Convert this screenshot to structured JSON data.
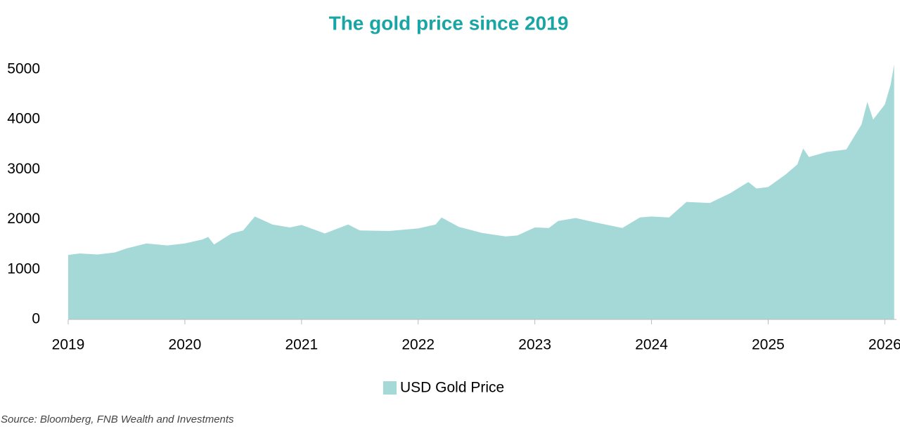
{
  "chart_data": {
    "type": "area",
    "title": "The gold price since 2019",
    "source": "Source: Bloomberg, FNB Wealth and Investments",
    "x": [
      2019.0,
      2019.1,
      2019.25,
      2019.4,
      2019.5,
      2019.67,
      2019.85,
      2020.0,
      2020.15,
      2020.2,
      2020.25,
      2020.4,
      2020.5,
      2020.6,
      2020.75,
      2020.9,
      2021.0,
      2021.2,
      2021.4,
      2021.5,
      2021.75,
      2022.0,
      2022.15,
      2022.2,
      2022.35,
      2022.55,
      2022.75,
      2022.85,
      2023.0,
      2023.12,
      2023.2,
      2023.35,
      2023.5,
      2023.75,
      2023.9,
      2024.0,
      2024.15,
      2024.3,
      2024.5,
      2024.67,
      2024.83,
      2024.9,
      2025.0,
      2025.15,
      2025.25,
      2025.3,
      2025.35,
      2025.5,
      2025.67,
      2025.8,
      2025.85,
      2025.9,
      2026.0,
      2026.05,
      2026.08
    ],
    "series": [
      {
        "name": "USD Gold Price",
        "color": "#a5d9d8",
        "values": [
          1290,
          1320,
          1300,
          1340,
          1420,
          1520,
          1480,
          1520,
          1600,
          1650,
          1500,
          1720,
          1780,
          2060,
          1900,
          1840,
          1890,
          1720,
          1900,
          1780,
          1770,
          1820,
          1900,
          2040,
          1850,
          1730,
          1660,
          1680,
          1840,
          1830,
          1970,
          2030,
          1950,
          1830,
          2040,
          2060,
          2040,
          2350,
          2330,
          2520,
          2750,
          2620,
          2650,
          2900,
          3100,
          3420,
          3250,
          3350,
          3400,
          3900,
          4350,
          4000,
          4300,
          4700,
          5100
        ]
      }
    ],
    "xlim": [
      2019,
      2026.1
    ],
    "xticks": [
      2019,
      2020,
      2021,
      2022,
      2023,
      2024,
      2025,
      2026
    ],
    "ylim": [
      0,
      5000
    ],
    "yticks": [
      0,
      1000,
      2000,
      3000,
      4000,
      5000
    ],
    "grid": false
  }
}
